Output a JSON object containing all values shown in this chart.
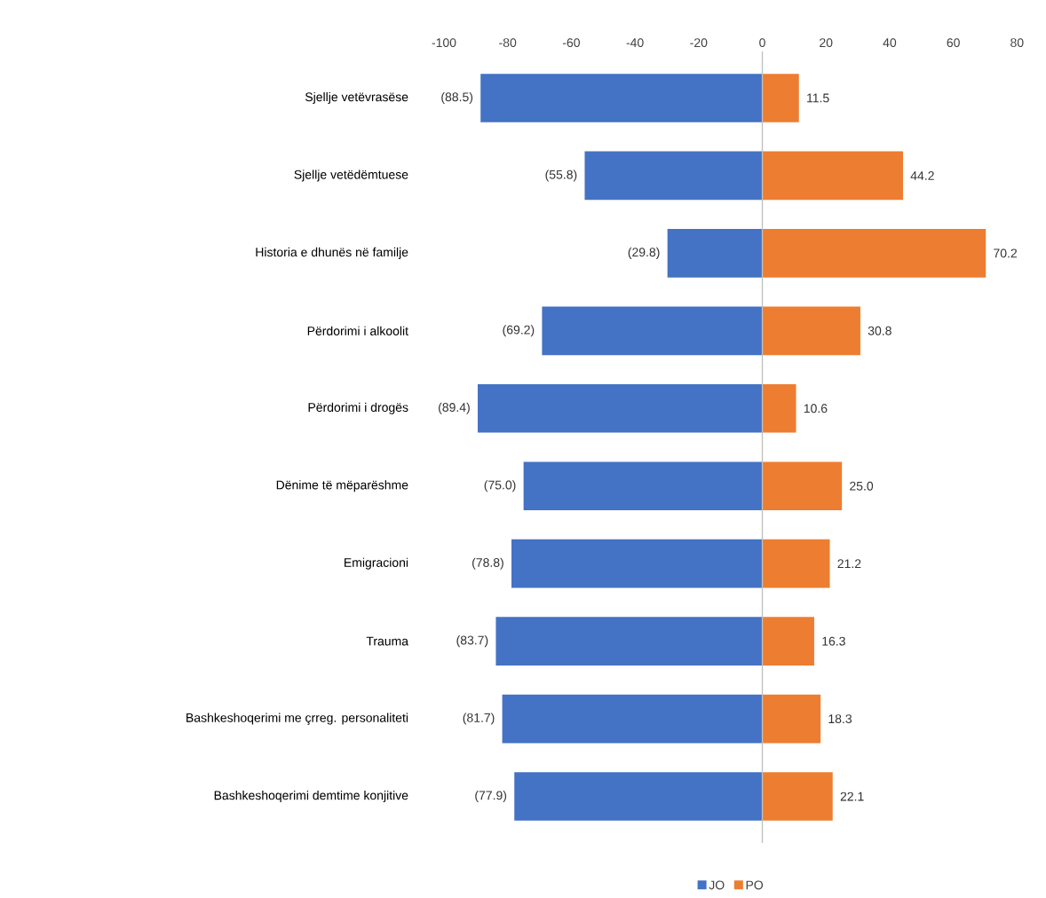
{
  "chart_data": {
    "type": "bar",
    "orientation": "horizontal",
    "stacked": true,
    "categories": [
      "Sjellje vetëvrasëse",
      "Sjellje vetëdëmtuese",
      "Historia e dhunës në familje",
      "Përdorimi i alkoolit",
      "Përdorimi i drogës",
      "Dënime të mëparëshme",
      "Emigracioni",
      "Trauma",
      "Bashkeshoqerimi me çrreg. personaliteti",
      "Bashkeshoqerimi demtime konjitive"
    ],
    "series": [
      {
        "name": "JO",
        "color": "#4472c4",
        "values": [
          -88.5,
          -55.8,
          -29.8,
          -69.2,
          -89.4,
          -75.0,
          -78.8,
          -83.7,
          -81.7,
          -77.9
        ],
        "value_labels": [
          "(88.5)",
          "(55.8)",
          "(29.8)",
          "(69.2)",
          "(89.4)",
          "(75.0)",
          "(78.8)",
          "(83.7)",
          "(81.7)",
          "(77.9)"
        ]
      },
      {
        "name": "PO",
        "color": "#ed7d31",
        "values": [
          11.5,
          44.2,
          70.2,
          30.8,
          10.6,
          25.0,
          21.2,
          16.3,
          18.3,
          22.1
        ],
        "value_labels": [
          "11.5",
          "44.2",
          "70.2",
          "30.8",
          "10.6",
          "25.0",
          "21.2",
          "16.3",
          "18.3",
          "22.1"
        ]
      }
    ],
    "xlim": [
      -100,
      80
    ],
    "xticks": [
      -100,
      -80,
      -60,
      -40,
      -20,
      0,
      20,
      40,
      60,
      80
    ],
    "legend": "bottom"
  }
}
